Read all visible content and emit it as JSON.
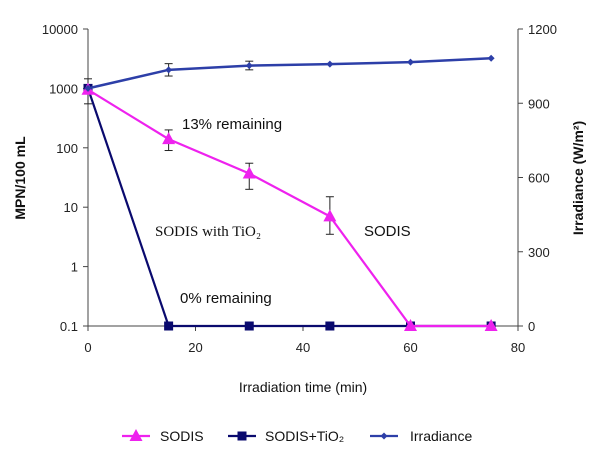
{
  "chart_data": {
    "type": "line",
    "xlabel": "Irradiation time (min)",
    "ylabel_left": "MPN/100 mL",
    "ylabel_right": "Irradiance (W/m²)",
    "xlim": [
      0,
      80
    ],
    "x_ticks": [
      "0",
      "20",
      "40",
      "60",
      "80"
    ],
    "ylim_left": [
      0.1,
      10000
    ],
    "y_left_scale": "log",
    "y_left_ticks": [
      "0.1",
      "1",
      "10",
      "100",
      "1000",
      "10000"
    ],
    "ylim_right": [
      0,
      1200
    ],
    "y_right_ticks": [
      "0",
      "300",
      "600",
      "900",
      "1200"
    ],
    "grid": false,
    "legend_position": "bottom",
    "series": [
      {
        "name": "SODIS",
        "axis": "left",
        "color": "#ee22ee",
        "marker": "triangle",
        "x": [
          0,
          15,
          30,
          45,
          60,
          75
        ],
        "y": [
          950,
          140,
          37,
          7,
          0.1,
          0.1
        ],
        "err_low": [
          null,
          90,
          20,
          3.5,
          null,
          null
        ],
        "err_high": [
          null,
          200,
          55,
          15,
          null,
          null
        ]
      },
      {
        "name": "SODIS+TiO₂",
        "axis": "left",
        "color": "#0a0a6e",
        "marker": "square",
        "x": [
          0,
          15,
          30,
          45,
          60,
          75
        ],
        "y": [
          1000,
          0.1,
          0.1,
          0.1,
          0.1,
          0.1
        ],
        "err_low": [
          550,
          null,
          null,
          null,
          null,
          null
        ],
        "err_high": [
          1450,
          null,
          null,
          null,
          null,
          null
        ]
      },
      {
        "name": "Irradiance",
        "axis": "right",
        "color": "#2d3fa8",
        "marker": "small-diamond",
        "x": [
          0,
          15,
          30,
          45,
          60,
          75
        ],
        "y": [
          960,
          1035,
          1052,
          1058,
          1066,
          1082
        ],
        "err_low": [
          null,
          1010,
          1035,
          null,
          null,
          null
        ],
        "err_high": [
          null,
          1060,
          1070,
          null,
          null,
          null
        ]
      }
    ],
    "annotations": [
      {
        "text": "13% remaining"
      },
      {
        "text": "SODIS with TiO₂"
      },
      {
        "text": "SODIS"
      },
      {
        "text": "0% remaining"
      }
    ]
  }
}
